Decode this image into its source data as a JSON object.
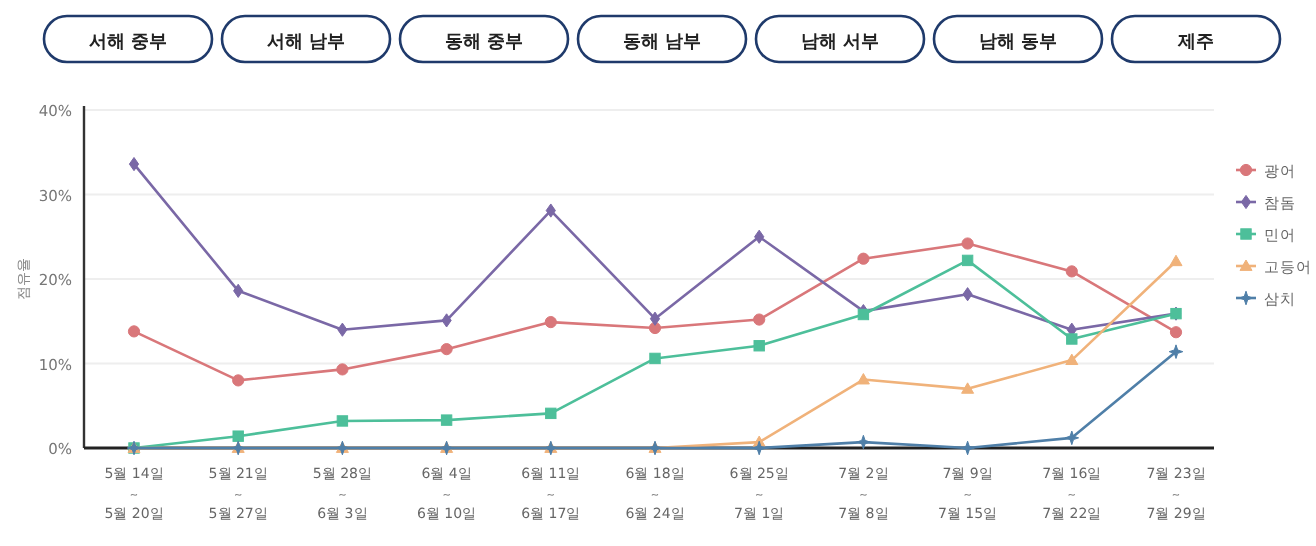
{
  "chart_data": {
    "type": "line",
    "annotations": [
      "서해 중부",
      "서해 남부",
      "동해 중부",
      "동해 남부",
      "남해 서부",
      "남해 동부",
      "제주"
    ],
    "ylabel": "점유율",
    "categories": [
      "5월 14일\n~\n5월 20일",
      "5월 21일\n~\n5월 27일",
      "5월 28일\n~\n6월 3일",
      "6월 4일\n~\n6월 10일",
      "6월 11일\n~\n6월 17일",
      "6월 18일\n~\n6월 24일",
      "6월 25일\n~\n7월 1일",
      "7월 2일\n~\n7월 8일",
      "7월 9일\n~\n7월 15일",
      "7월 16일\n~\n7월 22일",
      "7월 23일\n~\n7월 29일"
    ],
    "series": [
      {
        "name": "광어",
        "color": "#d9777a",
        "marker": "circle",
        "values": [
          13.8,
          8.0,
          9.3,
          11.7,
          14.9,
          14.2,
          15.2,
          22.4,
          24.2,
          20.9,
          13.7
        ]
      },
      {
        "name": "참돔",
        "color": "#7a68a6",
        "marker": "diamond",
        "values": [
          33.6,
          18.6,
          14.0,
          15.1,
          28.1,
          15.3,
          25.0,
          16.2,
          18.2,
          14.0,
          15.9
        ]
      },
      {
        "name": "민어",
        "color": "#4dbf9a",
        "marker": "square",
        "values": [
          0,
          1.4,
          3.2,
          3.3,
          4.1,
          10.6,
          12.1,
          15.8,
          22.2,
          12.9,
          15.9
        ]
      },
      {
        "name": "고등어",
        "color": "#f0b27a",
        "marker": "triangle",
        "values": [
          0,
          0,
          0,
          0,
          0,
          0,
          0.7,
          8.1,
          7.0,
          10.4,
          22.1
        ]
      },
      {
        "name": "삼치",
        "color": "#4f7fa8",
        "marker": "star",
        "values": [
          0,
          0,
          0,
          0,
          0,
          0,
          0,
          0.7,
          0,
          1.2,
          11.4
        ]
      }
    ],
    "ylim": [
      0,
      40
    ],
    "yticks": [
      {
        "value": 0,
        "label": "0%"
      },
      {
        "value": 10,
        "label": "10%"
      },
      {
        "value": 20,
        "label": "20%"
      },
      {
        "value": 30,
        "label": "30%"
      },
      {
        "value": 40,
        "label": "40%"
      }
    ],
    "grid": "y",
    "legend": "right"
  }
}
